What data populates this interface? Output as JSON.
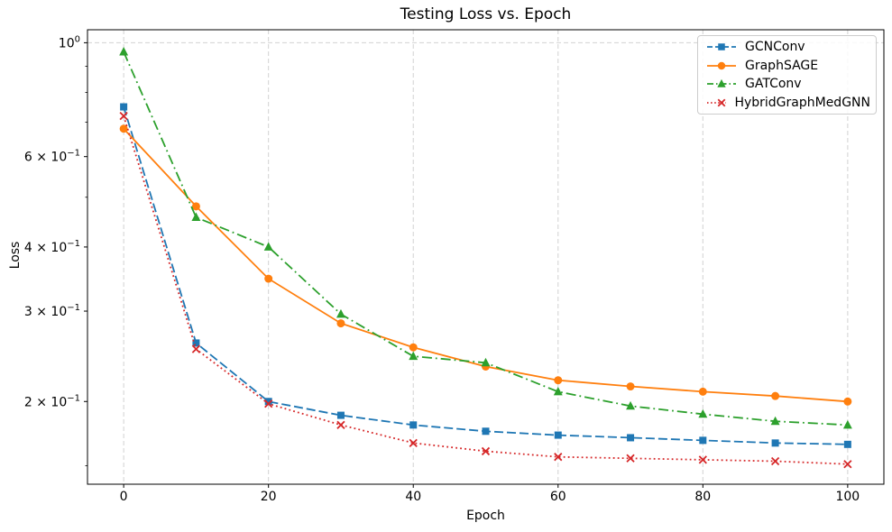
{
  "chart_data": {
    "type": "line",
    "title": "Testing Loss vs. Epoch",
    "xlabel": "Epoch",
    "ylabel": "Loss",
    "yscale": "log",
    "xlim": [
      -5,
      105
    ],
    "ylim": [
      0.138,
      1.06
    ],
    "x": [
      0,
      10,
      20,
      30,
      40,
      50,
      60,
      70,
      80,
      90,
      100
    ],
    "series": [
      {
        "name": "GCNConv",
        "color": "#1f77b4",
        "linestyle": "dashed",
        "marker": "square",
        "values": [
          0.75,
          0.26,
          0.2,
          0.188,
          0.18,
          0.175,
          0.172,
          0.17,
          0.168,
          0.166,
          0.165
        ]
      },
      {
        "name": "GraphSAGE",
        "color": "#ff7f0e",
        "linestyle": "solid",
        "marker": "circle",
        "values": [
          0.68,
          0.48,
          0.347,
          0.284,
          0.255,
          0.234,
          0.22,
          0.214,
          0.209,
          0.205,
          0.2
        ]
      },
      {
        "name": "GATConv",
        "color": "#2ca02c",
        "linestyle": "dashdot",
        "marker": "triangle",
        "values": [
          0.96,
          0.457,
          0.4,
          0.296,
          0.245,
          0.238,
          0.209,
          0.196,
          0.189,
          0.183,
          0.18
        ]
      },
      {
        "name": "HybridGraphMedGNN",
        "color": "#d62728",
        "linestyle": "dotted",
        "marker": "x",
        "values": [
          0.72,
          0.253,
          0.198,
          0.18,
          0.166,
          0.16,
          0.156,
          0.155,
          0.154,
          0.153,
          0.151
        ]
      }
    ],
    "xticks": [
      0,
      20,
      40,
      60,
      80,
      100
    ],
    "yticks_labeled": [
      {
        "value": 1.0,
        "prefix": "",
        "exponent": "0"
      },
      {
        "value": 0.6,
        "prefix": "6 × ",
        "exponent": "−1"
      },
      {
        "value": 0.4,
        "prefix": "4 × ",
        "exponent": "−1"
      },
      {
        "value": 0.3,
        "prefix": "3 × ",
        "exponent": "−1"
      },
      {
        "value": 0.2,
        "prefix": "2 × ",
        "exponent": "−1"
      }
    ],
    "yticks_minor": [
      0.9,
      0.8,
      0.7,
      0.5,
      0.15
    ],
    "grid": {
      "on": true,
      "linestyle": "dashed",
      "color": "#d2d2d2",
      "x_values": [
        0,
        20,
        40,
        60,
        80,
        100
      ],
      "y_values": [
        1.0
      ]
    },
    "legend": {
      "position": "upper right",
      "entries": [
        "GCNConv",
        "GraphSAGE",
        "GATConv",
        "HybridGraphMedGNN"
      ]
    }
  }
}
